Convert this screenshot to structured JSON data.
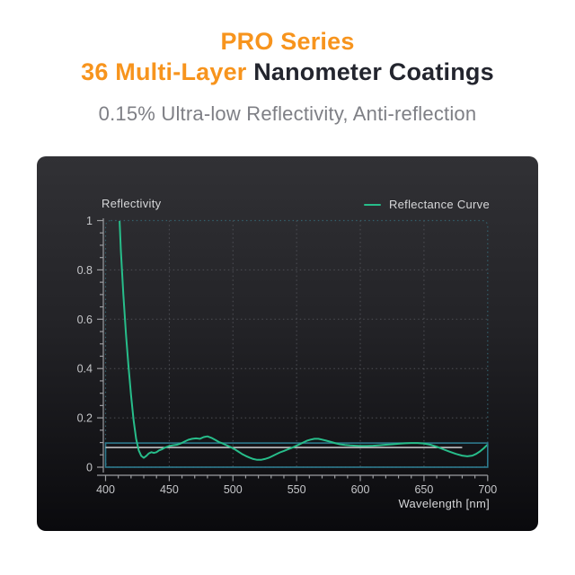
{
  "header": {
    "title_line1": "PRO Series",
    "title_line2_orange": "36 Multi-Layer",
    "title_line2_dark": " Nanometer Coatings",
    "subtitle": "0.15% Ultra-low Reflectivity, Anti-reflection"
  },
  "colors": {
    "accent_orange": "#F7941D",
    "title_dark": "#23252E",
    "subtitle_gray": "#7E7F85",
    "panel_top": "#313135",
    "panel_bottom": "#0A0A0D",
    "curve_green": "#27BD8A",
    "band_teal": "#2E7A8E",
    "border_dotted_teal": "#34606C",
    "grid_gray": "#4E4F55",
    "axis_gray": "#9B9CA0",
    "tick_label": "#C6C7CA",
    "white_ref_line": "#DFE1E3"
  },
  "chart_data": {
    "type": "line",
    "title": "",
    "ylabel": "Reflectivity",
    "xlabel": "Wavelength [nm]",
    "xlim": [
      400,
      700
    ],
    "ylim": [
      0,
      1
    ],
    "x_ticks": [
      400,
      450,
      500,
      550,
      600,
      650,
      700
    ],
    "y_ticks": [
      0,
      0.2,
      0.4,
      0.6,
      0.8,
      1
    ],
    "x_minor_step": 10,
    "y_minor_step": 0.05,
    "grid": "dotted",
    "legend": [
      {
        "label": "Reflectance Curve",
        "color": "#27BD8A"
      }
    ],
    "legend_position": "top-right",
    "reference_lines": [
      {
        "type": "band",
        "from": 0,
        "to": 0.098,
        "color": "#2E7A8E",
        "note": "low reflectivity band outline"
      },
      {
        "type": "hline",
        "value": 0.08,
        "x_from": 400,
        "x_to": 680,
        "color": "#DFE1E3"
      }
    ],
    "series": [
      {
        "name": "Reflectance Curve",
        "color": "#27BD8A",
        "points": [
          [
            409,
            1.06
          ],
          [
            411,
            1.0
          ],
          [
            412,
            0.88
          ],
          [
            414,
            0.7
          ],
          [
            416,
            0.54
          ],
          [
            418,
            0.41
          ],
          [
            420,
            0.29
          ],
          [
            422,
            0.19
          ],
          [
            424,
            0.115
          ],
          [
            426,
            0.068
          ],
          [
            428,
            0.046
          ],
          [
            430,
            0.038
          ],
          [
            432,
            0.046
          ],
          [
            434,
            0.056
          ],
          [
            436,
            0.061
          ],
          [
            438,
            0.058
          ],
          [
            440,
            0.061
          ],
          [
            442,
            0.068
          ],
          [
            444,
            0.072
          ],
          [
            446,
            0.078
          ],
          [
            448,
            0.082
          ],
          [
            450,
            0.086
          ],
          [
            453,
            0.089
          ],
          [
            456,
            0.091
          ],
          [
            459,
            0.096
          ],
          [
            462,
            0.104
          ],
          [
            465,
            0.111
          ],
          [
            468,
            0.115
          ],
          [
            471,
            0.117
          ],
          [
            474,
            0.115
          ],
          [
            477,
            0.122
          ],
          [
            480,
            0.125
          ],
          [
            483,
            0.119
          ],
          [
            486,
            0.111
          ],
          [
            489,
            0.102
          ],
          [
            492,
            0.096
          ],
          [
            495,
            0.089
          ],
          [
            498,
            0.082
          ],
          [
            501,
            0.074
          ],
          [
            504,
            0.064
          ],
          [
            507,
            0.054
          ],
          [
            510,
            0.046
          ],
          [
            513,
            0.039
          ],
          [
            516,
            0.033
          ],
          [
            519,
            0.03
          ],
          [
            522,
            0.03
          ],
          [
            525,
            0.033
          ],
          [
            528,
            0.038
          ],
          [
            531,
            0.045
          ],
          [
            534,
            0.053
          ],
          [
            537,
            0.06
          ],
          [
            540,
            0.066
          ],
          [
            543,
            0.072
          ],
          [
            546,
            0.078
          ],
          [
            549,
            0.085
          ],
          [
            552,
            0.092
          ],
          [
            555,
            0.1
          ],
          [
            558,
            0.107
          ],
          [
            561,
            0.112
          ],
          [
            564,
            0.115
          ],
          [
            567,
            0.115
          ],
          [
            570,
            0.112
          ],
          [
            573,
            0.108
          ],
          [
            576,
            0.104
          ],
          [
            580,
            0.098
          ],
          [
            584,
            0.093
          ],
          [
            588,
            0.09
          ],
          [
            592,
            0.088
          ],
          [
            596,
            0.087
          ],
          [
            600,
            0.086
          ],
          [
            605,
            0.086
          ],
          [
            610,
            0.087
          ],
          [
            615,
            0.089
          ],
          [
            620,
            0.091
          ],
          [
            625,
            0.093
          ],
          [
            630,
            0.095
          ],
          [
            635,
            0.097
          ],
          [
            640,
            0.098
          ],
          [
            645,
            0.098
          ],
          [
            650,
            0.096
          ],
          [
            655,
            0.091
          ],
          [
            660,
            0.083
          ],
          [
            665,
            0.073
          ],
          [
            670,
            0.063
          ],
          [
            675,
            0.054
          ],
          [
            680,
            0.047
          ],
          [
            684,
            0.044
          ],
          [
            688,
            0.047
          ],
          [
            691,
            0.054
          ],
          [
            694,
            0.064
          ],
          [
            697,
            0.077
          ],
          [
            700,
            0.092
          ]
        ]
      }
    ]
  }
}
